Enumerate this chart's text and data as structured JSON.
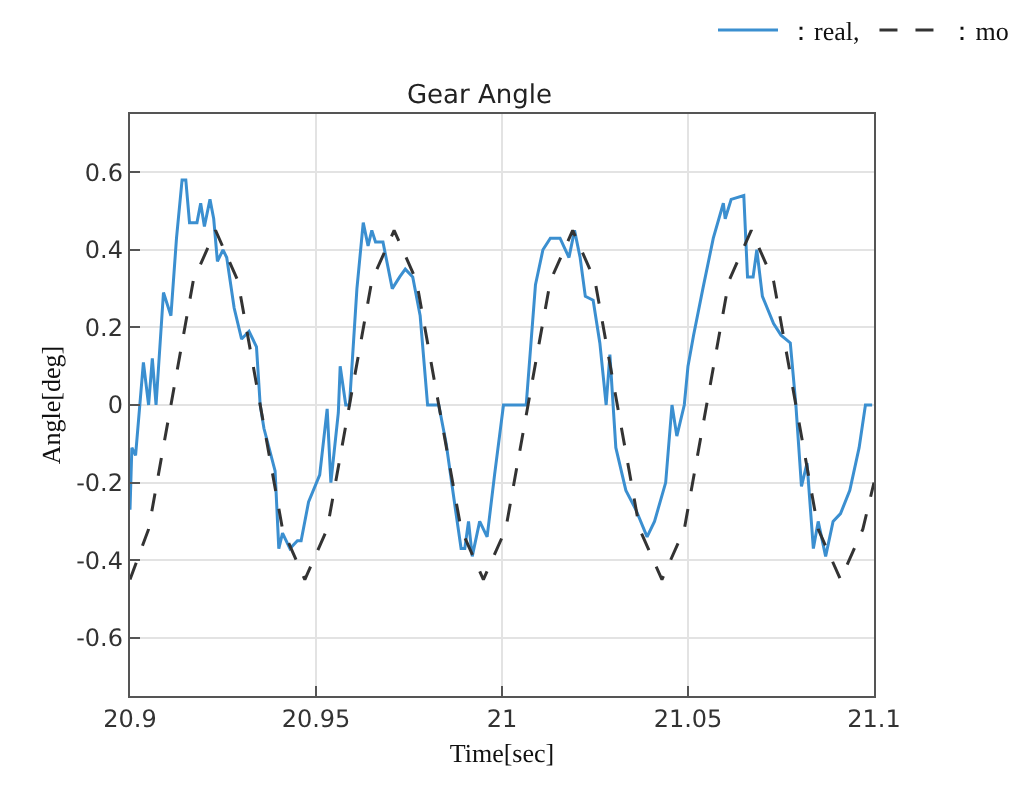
{
  "chart_data": {
    "type": "line",
    "title": "Gear Angle",
    "xlabel": "Time[sec]",
    "ylabel": "Angle[deg]",
    "xlim": [
      20.9,
      21.1
    ],
    "xticks": [
      20.9,
      20.95,
      21,
      21.05,
      21.1
    ],
    "ylim": [
      -0.75,
      0.75
    ],
    "yticks": [
      -0.6,
      -0.4,
      -0.2,
      0,
      0.2,
      0.4,
      0.6
    ],
    "grid": true,
    "legend": "top right",
    "series": [
      {
        "name": "：real,",
        "color": "#3b8fd0",
        "line_style": "solid",
        "x": [
          20.9,
          20.9005,
          20.9015,
          20.9036,
          20.905,
          20.906,
          20.907,
          20.909,
          20.911,
          20.9125,
          20.914,
          20.915,
          20.916,
          20.918,
          20.919,
          20.92,
          20.9215,
          20.9225,
          20.9235,
          20.925,
          20.926,
          20.928,
          20.93,
          20.932,
          20.934,
          20.935,
          20.936,
          20.939,
          20.94,
          20.941,
          20.943,
          20.945,
          20.946,
          20.948,
          20.951,
          20.953,
          20.954,
          20.956,
          20.9565,
          20.958,
          20.959,
          20.961,
          20.9627,
          20.964,
          20.965,
          20.966,
          20.968,
          20.9705,
          20.9725,
          20.974,
          20.976,
          20.978,
          20.98,
          20.983,
          20.985,
          20.9875,
          20.989,
          20.99,
          20.991,
          20.992,
          20.994,
          20.996,
          20.998,
          21.0004,
          21.0065,
          21.009,
          21.011,
          21.013,
          21.0156,
          21.018,
          21.0195,
          21.021,
          21.0224,
          21.0245,
          21.0263,
          21.028,
          21.029,
          21.0306,
          21.0333,
          21.036,
          21.039,
          21.041,
          21.044,
          21.0457,
          21.047,
          21.049,
          21.05,
          21.0515,
          21.054,
          21.0568,
          21.0595,
          21.06,
          21.0616,
          21.065,
          21.066,
          21.0675,
          21.0685,
          21.07,
          21.073,
          21.075,
          21.0775,
          21.079,
          21.0805,
          21.082,
          21.0837,
          21.085,
          21.087,
          21.089,
          21.091,
          21.0935,
          21.096,
          21.0977,
          21.0995
        ],
        "values": [
          -0.27,
          -0.11,
          -0.13,
          0.11,
          0.0,
          0.12,
          0.0,
          0.29,
          0.23,
          0.43,
          0.58,
          0.58,
          0.47,
          0.47,
          0.52,
          0.46,
          0.53,
          0.48,
          0.37,
          0.4,
          0.38,
          0.25,
          0.17,
          0.19,
          0.15,
          0.0,
          -0.06,
          -0.17,
          -0.37,
          -0.33,
          -0.37,
          -0.35,
          -0.35,
          -0.25,
          -0.18,
          -0.01,
          -0.2,
          -0.02,
          0.1,
          0.0,
          0.0,
          0.3,
          0.47,
          0.41,
          0.45,
          0.42,
          0.42,
          0.3,
          0.33,
          0.35,
          0.33,
          0.23,
          0.0,
          0.0,
          -0.1,
          -0.27,
          -0.37,
          -0.37,
          -0.3,
          -0.39,
          -0.3,
          -0.34,
          -0.18,
          0.0,
          0.0,
          0.31,
          0.4,
          0.43,
          0.43,
          0.38,
          0.45,
          0.38,
          0.28,
          0.27,
          0.16,
          0.0,
          0.13,
          -0.11,
          -0.22,
          -0.27,
          -0.34,
          -0.3,
          -0.2,
          0.0,
          -0.08,
          0.0,
          0.1,
          0.18,
          0.3,
          0.43,
          0.52,
          0.48,
          0.53,
          0.54,
          0.33,
          0.33,
          0.4,
          0.28,
          0.21,
          0.18,
          0.16,
          0.0,
          -0.21,
          -0.15,
          -0.37,
          -0.3,
          -0.39,
          -0.3,
          -0.28,
          -0.22,
          -0.11,
          0.0,
          0.0
        ]
      },
      {
        "name": "：mo",
        "color": "#333333",
        "line_style": "dashed",
        "x": [
          20.9,
          20.905,
          20.911,
          20.917,
          20.923,
          20.929,
          20.935,
          20.941,
          20.947,
          20.953,
          20.959,
          20.965,
          20.971,
          20.977,
          20.983,
          20.989,
          20.995,
          21.001,
          21.007,
          21.013,
          21.019,
          21.025,
          21.031,
          21.037,
          21.043,
          21.049,
          21.055,
          21.061,
          21.067,
          21.073,
          21.079,
          21.085,
          21.091,
          21.097,
          21.1
        ],
        "values": [
          -0.45,
          -0.32,
          0,
          0.32,
          0.45,
          0.32,
          0,
          -0.32,
          -0.45,
          -0.32,
          0,
          0.32,
          0.45,
          0.32,
          0,
          -0.32,
          -0.45,
          -0.32,
          0,
          0.32,
          0.45,
          0.32,
          0,
          -0.32,
          -0.45,
          -0.32,
          0,
          0.32,
          0.45,
          0.32,
          0,
          -0.32,
          -0.45,
          -0.32,
          -0.2
        ]
      }
    ]
  }
}
